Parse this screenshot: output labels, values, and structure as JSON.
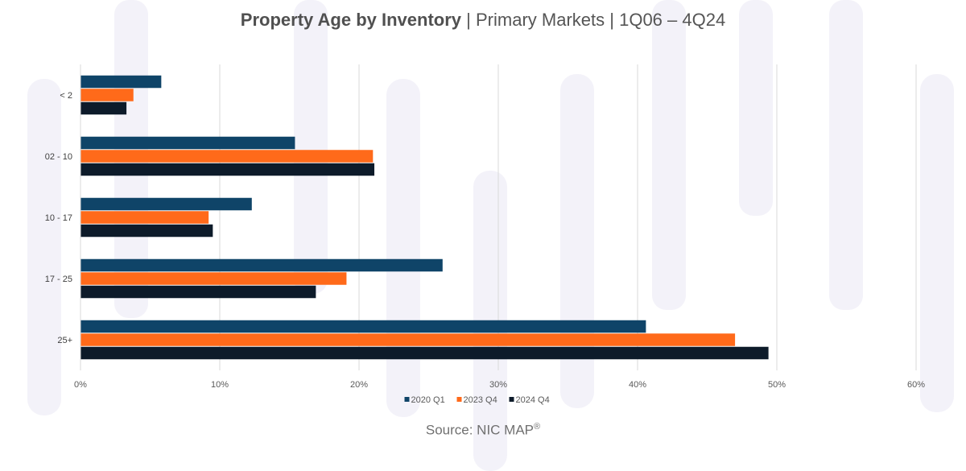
{
  "chart_data": {
    "type": "bar",
    "orientation": "horizontal",
    "title_main": "Property Age by Inventory",
    "title_parts": [
      "Primary Markets",
      "1Q06 – 4Q24"
    ],
    "title_separator": "|",
    "categories": [
      "< 2",
      "02 - 10",
      "10 - 17",
      "17 - 25",
      "25+"
    ],
    "series": [
      {
        "name": "2020 Q1",
        "color": "#0f4468",
        "values": [
          5.8,
          15.4,
          12.3,
          26.0,
          40.6
        ]
      },
      {
        "name": "2023 Q4",
        "color": "#ff6a1a",
        "values": [
          3.8,
          21.0,
          9.2,
          19.1,
          47.0
        ]
      },
      {
        "name": "2024 Q4",
        "color": "#0d1b2a",
        "values": [
          3.3,
          21.1,
          9.5,
          16.9,
          49.4
        ]
      }
    ],
    "xlim": [
      0,
      60
    ],
    "xticks": [
      0,
      10,
      20,
      30,
      40,
      50,
      60
    ],
    "tick_format": "percent",
    "grid": "vertical",
    "legend_position": "bottom",
    "source_text": "Source: NIC MAP",
    "source_mark": "®"
  }
}
